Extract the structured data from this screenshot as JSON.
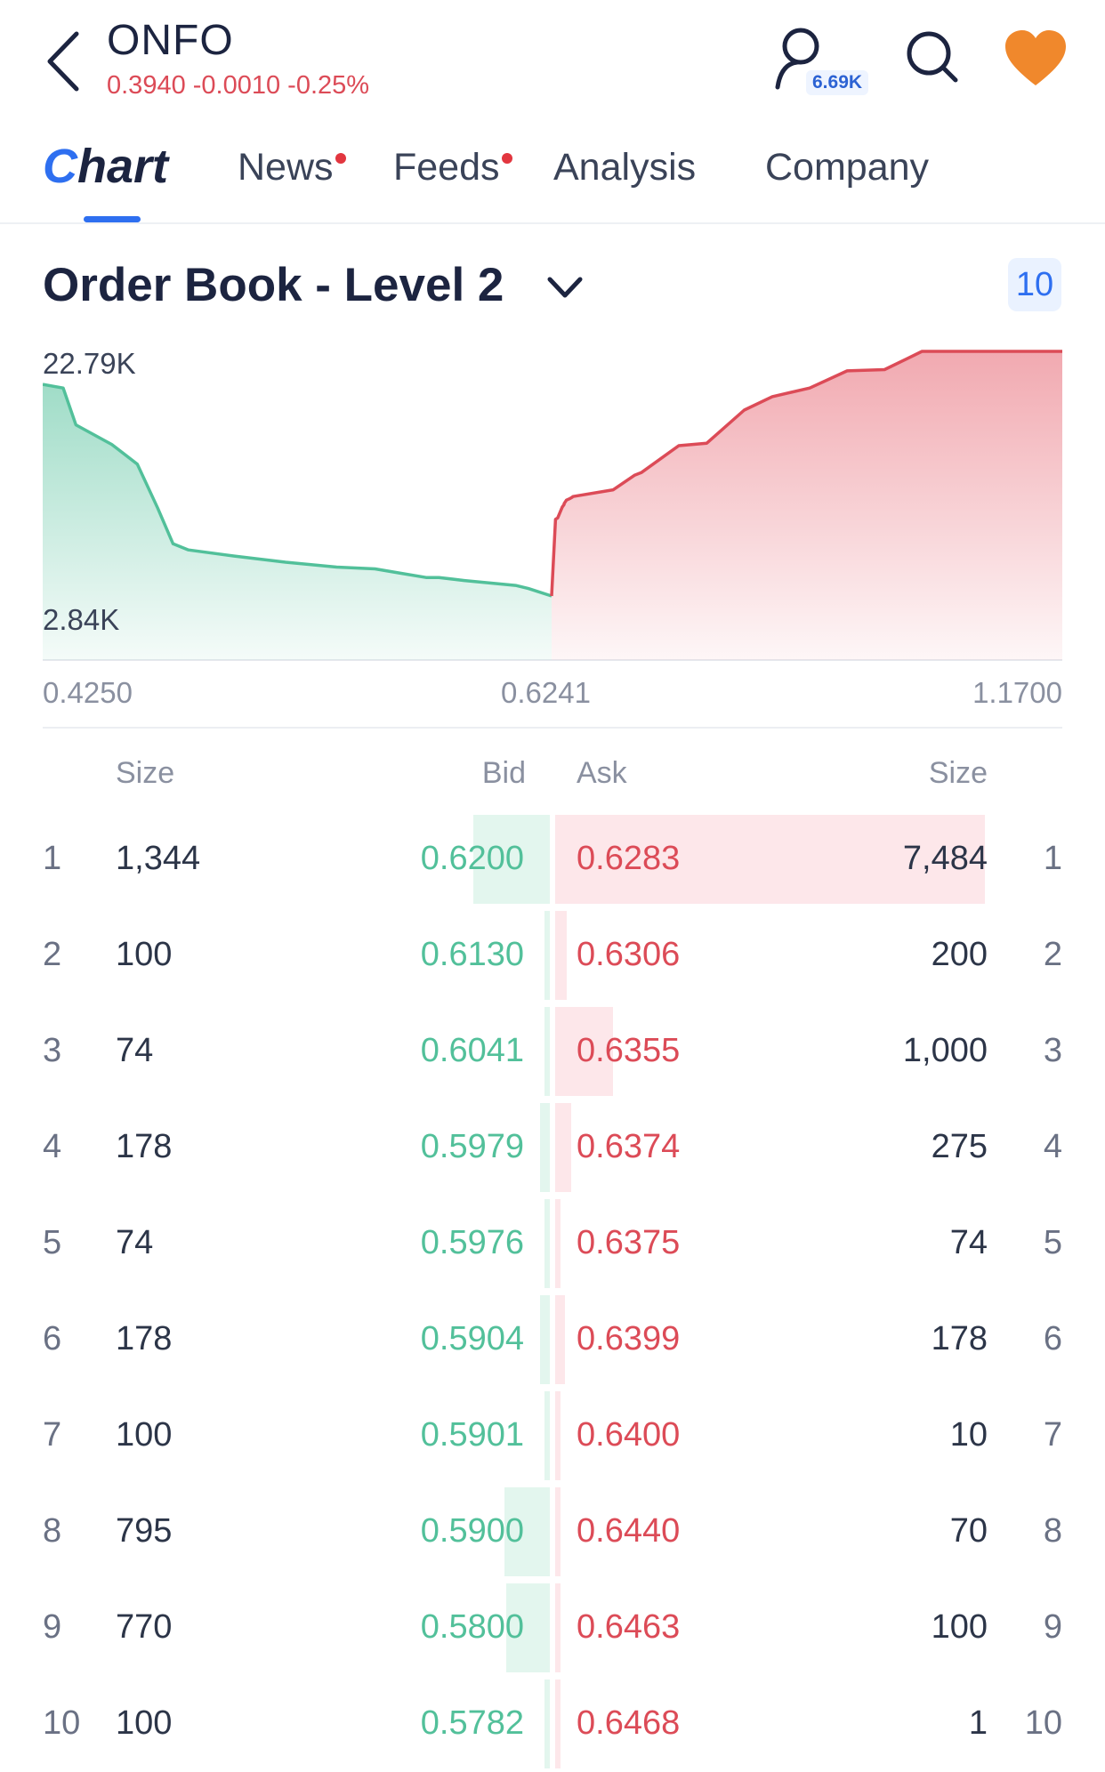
{
  "header": {
    "ticker": "ONFO",
    "quote": "0.3940 -0.0010 -0.25%",
    "followers": "6.69K",
    "icons": [
      "back-icon",
      "person-icon",
      "search-icon",
      "heart-icon"
    ]
  },
  "tabs": [
    {
      "label": "Chart",
      "active": true
    },
    {
      "label": "News",
      "dot": true
    },
    {
      "label": "Feeds",
      "dot": true
    },
    {
      "label": "Analysis"
    },
    {
      "label": "Company"
    }
  ],
  "order_book": {
    "title": "Order Book - Level 2",
    "depth_badge": "10",
    "columns": {
      "size_left": "Size",
      "bid": "Bid",
      "ask": "Ask",
      "size_right": "Size"
    },
    "rows": [
      {
        "n": "1",
        "bid_size": "1,344",
        "bid": "0.6200",
        "ask": "0.6283",
        "ask_size": "7,484",
        "n_right": "1"
      },
      {
        "n": "2",
        "bid_size": "100",
        "bid": "0.6130",
        "ask": "0.6306",
        "ask_size": "200",
        "n_right": "2"
      },
      {
        "n": "3",
        "bid_size": "74",
        "bid": "0.6041",
        "ask": "0.6355",
        "ask_size": "1,000",
        "n_right": "3"
      },
      {
        "n": "4",
        "bid_size": "178",
        "bid": "0.5979",
        "ask": "0.6374",
        "ask_size": "275",
        "n_right": "4"
      },
      {
        "n": "5",
        "bid_size": "74",
        "bid": "0.5976",
        "ask": "0.6375",
        "ask_size": "74",
        "n_right": "5"
      },
      {
        "n": "6",
        "bid_size": "178",
        "bid": "0.5904",
        "ask": "0.6399",
        "ask_size": "178",
        "n_right": "6"
      },
      {
        "n": "7",
        "bid_size": "100",
        "bid": "0.5901",
        "ask": "0.6400",
        "ask_size": "10",
        "n_right": "7"
      },
      {
        "n": "8",
        "bid_size": "795",
        "bid": "0.5900",
        "ask": "0.6440",
        "ask_size": "70",
        "n_right": "8"
      },
      {
        "n": "9",
        "bid_size": "770",
        "bid": "0.5800",
        "ask": "0.6463",
        "ask_size": "100",
        "n_right": "9"
      },
      {
        "n": "10",
        "bid_size": "100",
        "bid": "0.5782",
        "ask": "0.6468",
        "ask_size": "1",
        "n_right": "10"
      }
    ]
  },
  "chart_data": {
    "type": "area",
    "title": "",
    "y_tick_labels": [
      "22.79K",
      "2.84K"
    ],
    "x_tick_labels": [
      "0.4250",
      "0.6241",
      "1.1700"
    ],
    "ylim": [
      2840,
      22790
    ],
    "series": [
      {
        "name": "",
        "color": "#52c09a",
        "x": [
          0.425,
          0.433,
          0.438,
          0.452,
          0.462,
          0.47,
          0.476,
          0.482,
          0.5,
          0.52,
          0.54,
          0.555,
          0.565,
          0.575,
          0.58,
          0.59,
          0.6,
          0.61,
          0.615,
          0.6241
        ],
        "y": [
          20100,
          19800,
          16800,
          15200,
          13600,
          10000,
          7100,
          6600,
          6100,
          5600,
          5200,
          5050,
          4700,
          4350,
          4350,
          4100,
          3900,
          3700,
          3450,
          2840
        ]
      },
      {
        "name": "",
        "color": "#dc4b57",
        "x": [
          0.6241,
          0.6283,
          0.6306,
          0.6355,
          0.6374,
          0.6375,
          0.6399,
          0.64,
          0.644,
          0.6463,
          0.6468,
          0.69,
          0.713,
          0.72,
          0.76,
          0.79,
          0.83,
          0.86,
          0.9,
          0.94,
          0.98,
          1.02,
          1.06,
          1.1,
          1.17
        ],
        "y": [
          2840,
          9100,
          9200,
          10100,
          10300,
          10380,
          10650,
          10660,
          10800,
          10900,
          10950,
          11500,
          12700,
          12900,
          15100,
          15300,
          18000,
          19100,
          19800,
          21200,
          21300,
          22790,
          22790,
          22790,
          22790
        ]
      }
    ],
    "grid": false,
    "legend": "none"
  }
}
